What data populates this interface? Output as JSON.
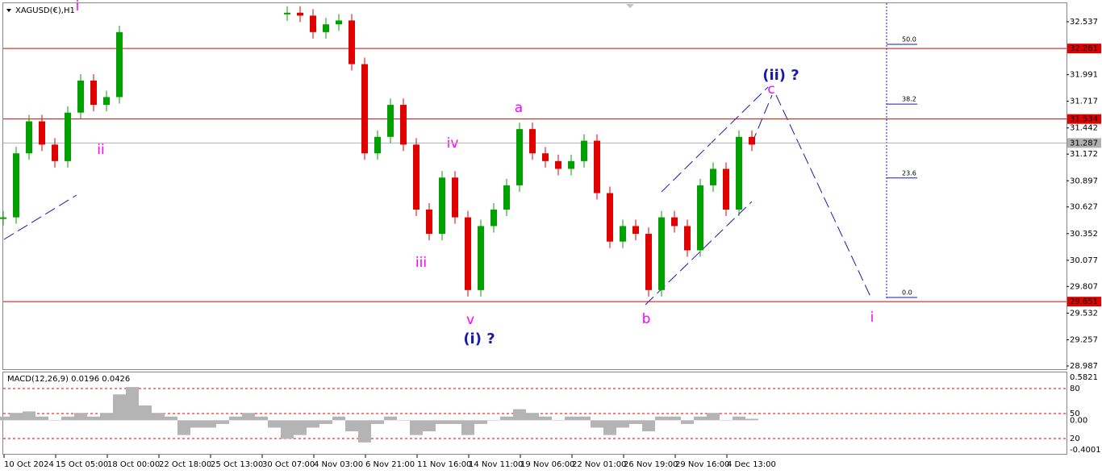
{
  "chart_data": [
    {
      "type": "candlestick",
      "title": "XAGUSD(€),H1",
      "xticks": [
        "10 Oct 2024",
        "15 Oct 05:00",
        "18 Oct 00:00",
        "22 Oct 18:00",
        "25 Oct 13:00",
        "30 Oct 07:00",
        "4 Nov 03:00",
        "6 Nov 21:00",
        "11 Nov 16:00",
        "14 Nov 11:00",
        "19 Nov 06:00",
        "22 Nov 01:00",
        "26 Nov 19:00",
        "29 Nov 16:00",
        "4 Dec 13:00"
      ],
      "values": [
        30.52,
        31.18,
        31.51,
        31.27,
        31.1,
        31.6,
        31.93,
        31.68,
        31.76,
        32.43,
        null,
        null,
        null,
        null,
        null,
        null,
        null,
        null,
        null,
        null,
        null,
        null,
        32.63,
        32.6,
        32.43,
        32.51,
        32.55,
        32.1,
        31.18,
        31.35,
        31.68,
        31.27,
        30.6,
        30.35,
        30.93,
        30.52,
        29.77,
        30.43,
        30.6,
        30.85,
        31.43,
        31.18,
        31.1,
        31.02,
        31.1,
        31.31,
        30.77,
        30.27,
        30.43,
        30.35,
        29.77,
        30.52,
        30.43,
        30.18,
        30.85,
        31.02,
        30.6,
        31.35,
        31.27
      ],
      "up_color": "#00a000",
      "down_color": "#e00000",
      "ylim": [
        28.954,
        32.728
      ],
      "yticks": [
        32.537,
        31.991,
        31.717,
        31.442,
        31.172,
        30.897,
        30.627,
        30.352,
        30.077,
        29.807,
        29.532,
        29.257,
        28.987
      ],
      "levels": [
        {
          "value": 32.261,
          "color": "#e00000"
        },
        {
          "value": 31.534,
          "color": "#e00000"
        },
        {
          "value": 31.287,
          "color": "#b0b0b0"
        },
        {
          "value": 29.651,
          "color": "#e00000"
        }
      ],
      "fib_levels": [
        {
          "value": 50,
          "label": "50.0"
        },
        {
          "value": 38.2,
          "label": "38.2"
        },
        {
          "value": 23.6,
          "label": "23.6"
        },
        {
          "value": 0,
          "label": "0.0"
        }
      ],
      "wave_labels": [
        "i",
        "ii",
        "iii",
        "iv",
        "v",
        "(i) ?",
        "a",
        "b",
        "c",
        "(ii) ?",
        "i"
      ]
    },
    {
      "type": "bar",
      "title": "MACD(12,26,9) 0.0196 0.0426",
      "values": [
        0.05,
        0.1,
        0.12,
        0.05,
        0.0,
        0.05,
        0.1,
        0.05,
        0.1,
        0.35,
        0.45,
        0.2,
        0.1,
        0.05,
        -0.2,
        -0.1,
        -0.1,
        -0.05,
        0.05,
        0.1,
        0.05,
        -0.1,
        -0.25,
        -0.2,
        -0.1,
        -0.05,
        0.05,
        -0.15,
        -0.3,
        -0.05,
        0.05,
        0.0,
        -0.2,
        -0.15,
        -0.05,
        -0.05,
        -0.2,
        -0.05,
        0.0,
        0.05,
        0.15,
        0.1,
        0.05,
        0.0,
        0.05,
        0.05,
        -0.1,
        -0.2,
        -0.1,
        -0.05,
        -0.15,
        0.05,
        0.05,
        -0.05,
        0.05,
        0.1,
        0.0,
        0.05,
        0.02
      ],
      "color": "#b4b4b4",
      "ylim": [
        -0.4547,
        0.6585
      ],
      "yticks": [
        0.5821,
        {
          "value": 0,
          "label": "0.00"
        },
        -0.4001
      ],
      "level_labels": [
        80,
        50,
        20
      ]
    }
  ]
}
